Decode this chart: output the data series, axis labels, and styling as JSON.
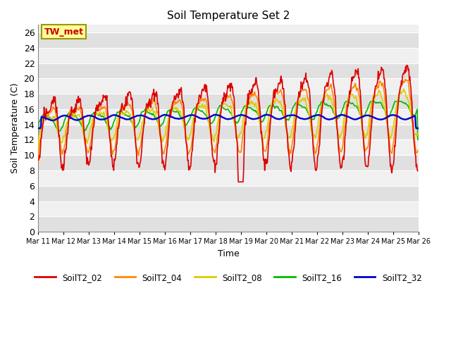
{
  "title": "Soil Temperature Set 2",
  "xlabel": "Time",
  "ylabel": "Soil Temperature (C)",
  "ylim": [
    0,
    27
  ],
  "yticks": [
    0,
    2,
    4,
    6,
    8,
    10,
    12,
    14,
    16,
    18,
    20,
    22,
    24,
    26
  ],
  "annotation": "TW_met",
  "annotation_color": "#cc0000",
  "annotation_bg": "#ffff99",
  "annotation_border": "#999900",
  "fig_bg": "#ffffff",
  "plot_bg_light": "#f0f0f0",
  "plot_bg_dark": "#e0e0e0",
  "grid_color": "#ffffff",
  "series_colors": {
    "SoilT2_02": "#dd0000",
    "SoilT2_04": "#ff8800",
    "SoilT2_08": "#ddcc00",
    "SoilT2_16": "#00bb00",
    "SoilT2_32": "#0000cc"
  },
  "xtick_labels": [
    "Mar 11",
    "Mar 12",
    "Mar 13",
    "Mar 14",
    "Mar 15",
    "Mar 16",
    "Mar 17",
    "Mar 18",
    "Mar 19",
    "Mar 20",
    "Mar 21",
    "Mar 22",
    "Mar 23",
    "Mar 24",
    "Mar 25",
    "Mar 26"
  ],
  "n_days": 15,
  "points_per_day": 48,
  "start_day": 11,
  "figsize": [
    6.4,
    4.8
  ],
  "dpi": 100
}
